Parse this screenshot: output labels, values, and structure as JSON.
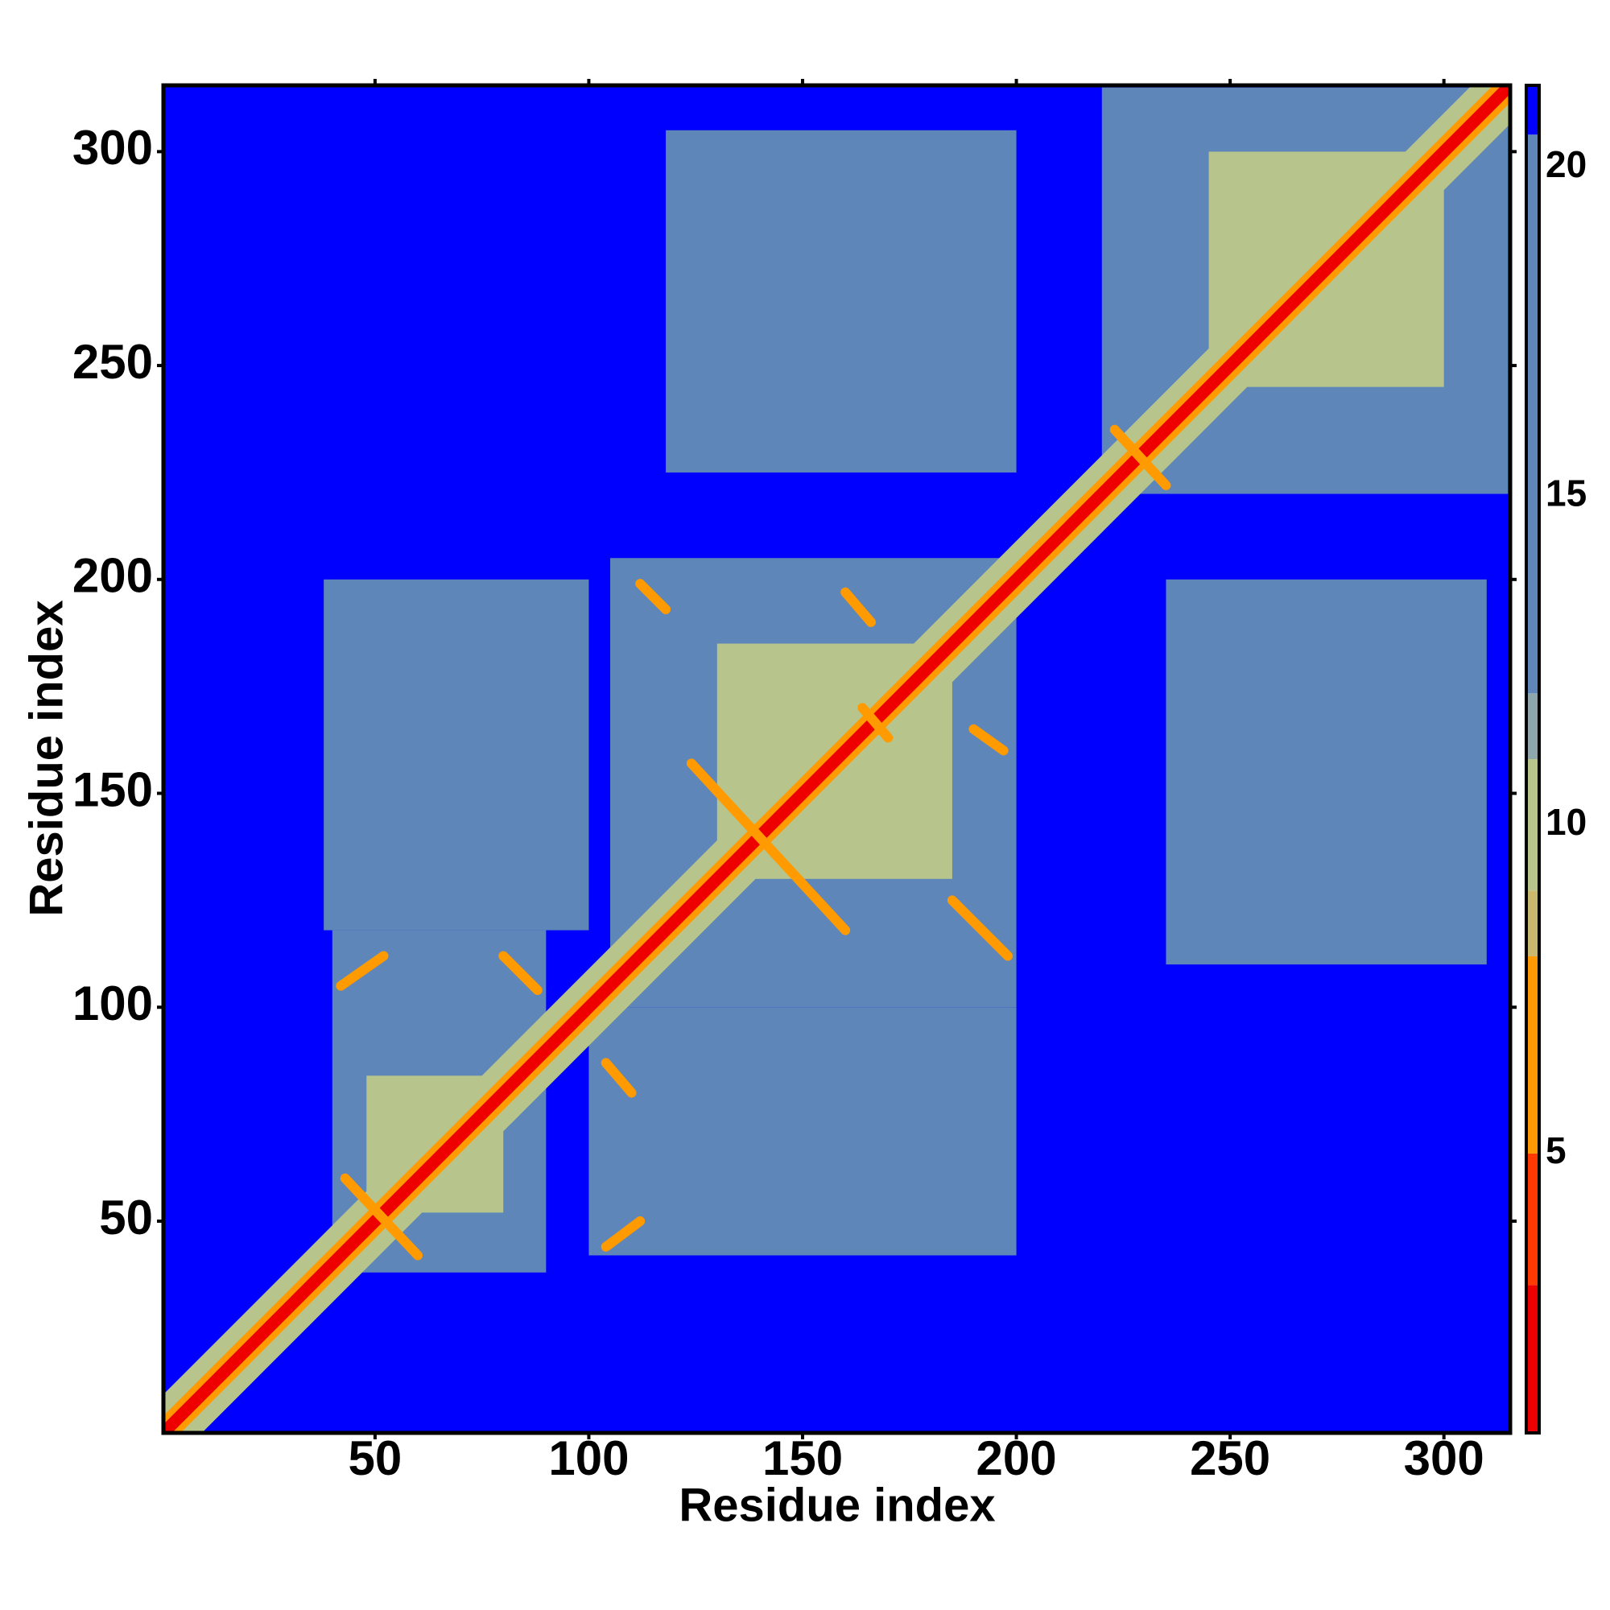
{
  "chart_data": {
    "type": "heatmap",
    "xlabel": "Residue index",
    "ylabel": "Residue index",
    "xlim": [
      0.5,
      315.5
    ],
    "ylim": [
      0.5,
      315.5
    ],
    "xticks": [
      50,
      100,
      150,
      200,
      250,
      300
    ],
    "yticks": [
      50,
      100,
      150,
      200,
      250,
      300
    ],
    "clim": [
      0.75,
      21.25
    ],
    "cticks": [
      5,
      10,
      15,
      20
    ],
    "color_levels": [
      0.75,
      3,
      5,
      8,
      9,
      11,
      12,
      20.5,
      21.25
    ],
    "colors": [
      "#ee0000",
      "#ff3a00",
      "#ff9a00",
      "#c9b86e",
      "#b7c48c",
      "#8ea7ad",
      "#5e86b8",
      "#0000ff"
    ],
    "cells": [
      {
        "x": [
          0.5,
          315.5
        ],
        "y": [
          0.5,
          315.5
        ],
        "value": 21
      },
      {
        "x": [
          40,
          90
        ],
        "y": [
          38,
          118
        ],
        "value": 16
      },
      {
        "x": [
          38,
          100
        ],
        "y": [
          118,
          200
        ],
        "value": 16
      },
      {
        "x": [
          100,
          200
        ],
        "y": [
          42,
          100
        ],
        "value": 16
      },
      {
        "x": [
          105,
          200
        ],
        "y": [
          100,
          205
        ],
        "value": 16
      },
      {
        "x": [
          118,
          200
        ],
        "y": [
          225,
          305
        ],
        "value": 16
      },
      {
        "x": [
          235,
          310
        ],
        "y": [
          110,
          200
        ],
        "value": 16
      },
      {
        "x": [
          220,
          315
        ],
        "y": [
          220,
          315
        ],
        "value": 16
      },
      {
        "x": [
          48,
          80
        ],
        "y": [
          52,
          84
        ],
        "value": 10
      },
      {
        "x": [
          130,
          185
        ],
        "y": [
          130,
          185
        ],
        "value": 10
      },
      {
        "x": [
          245,
          300
        ],
        "y": [
          245,
          300
        ],
        "value": 10
      }
    ],
    "diagonal_bands": [
      {
        "width": 9,
        "value": 10
      },
      {
        "width": 4,
        "value": 6
      },
      {
        "width": 2,
        "value": 2
      }
    ],
    "streaks": [
      {
        "x": [
          43,
          60
        ],
        "y": [
          60,
          42
        ],
        "value": 6
      },
      {
        "x": [
          42,
          52
        ],
        "y": [
          105,
          112
        ],
        "value": 6
      },
      {
        "x": [
          80,
          88
        ],
        "y": [
          112,
          104
        ],
        "value": 6
      },
      {
        "x": [
          104,
          112
        ],
        "y": [
          44,
          50
        ],
        "value": 6
      },
      {
        "x": [
          104,
          110
        ],
        "y": [
          87,
          80
        ],
        "value": 6
      },
      {
        "x": [
          112,
          118
        ],
        "y": [
          199,
          193
        ],
        "value": 6
      },
      {
        "x": [
          124,
          160
        ],
        "y": [
          157,
          118
        ],
        "value": 6
      },
      {
        "x": [
          160,
          166
        ],
        "y": [
          197,
          190
        ],
        "value": 6
      },
      {
        "x": [
          164,
          170
        ],
        "y": [
          170,
          163
        ],
        "value": 6
      },
      {
        "x": [
          190,
          197
        ],
        "y": [
          165,
          160
        ],
        "value": 6
      },
      {
        "x": [
          185,
          198
        ],
        "y": [
          125,
          112
        ],
        "value": 6
      },
      {
        "x": [
          223,
          235
        ],
        "y": [
          235,
          222
        ],
        "value": 6
      }
    ]
  }
}
